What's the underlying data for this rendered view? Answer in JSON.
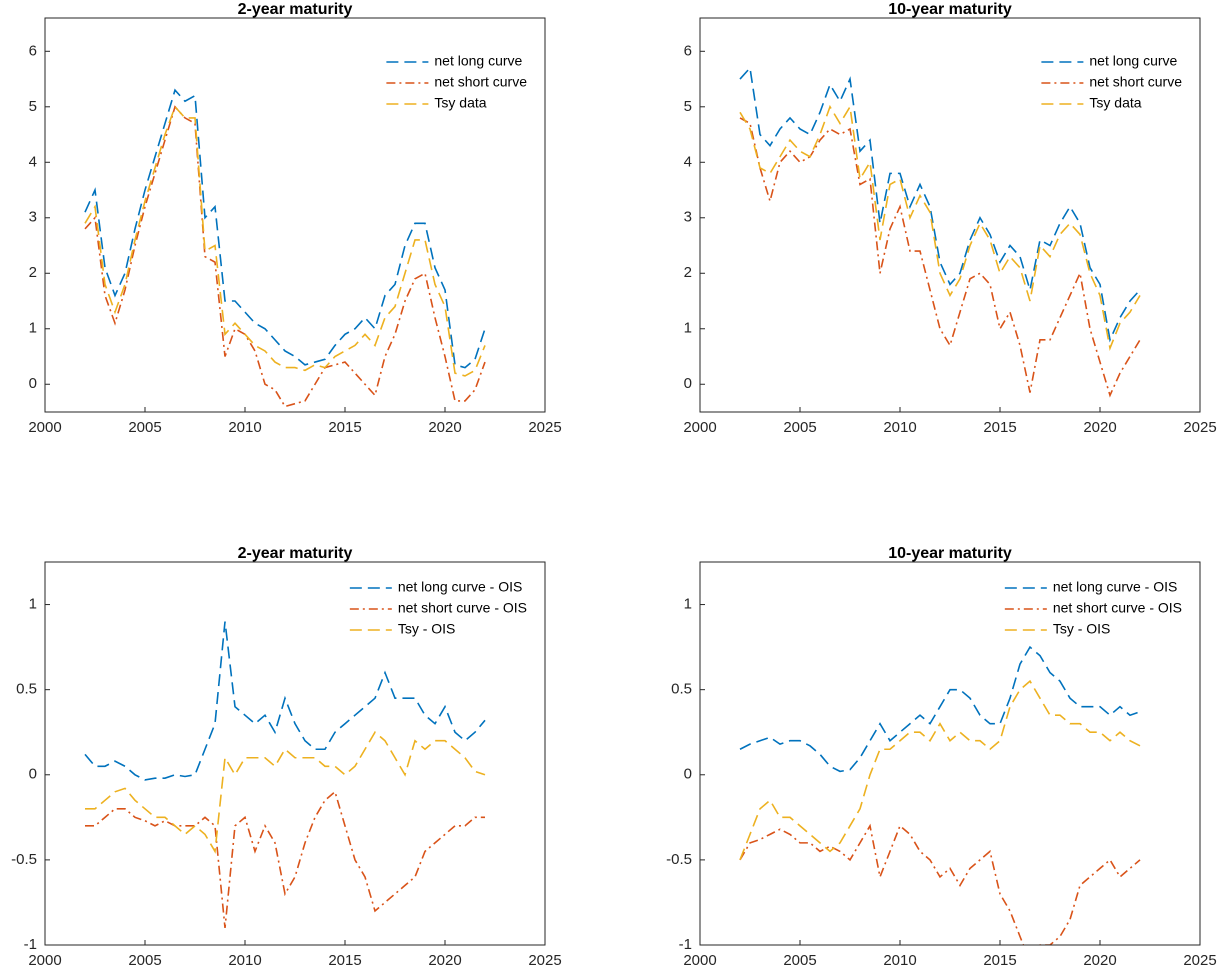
{
  "chart_data": [
    {
      "type": "line",
      "title": "2-year maturity",
      "legend": "upper right",
      "xlim": [
        2000,
        2025
      ],
      "xticks": [
        2000,
        2005,
        2010,
        2015,
        2020,
        2025
      ],
      "ylim": [
        -0.5,
        6.6
      ],
      "yticks": [
        0,
        1,
        2,
        3,
        4,
        5,
        6
      ],
      "x": [
        2002,
        2002.5,
        2003,
        2003.5,
        2004,
        2004.5,
        2005,
        2005.5,
        2006,
        2006.5,
        2007,
        2007.5,
        2008,
        2008.5,
        2009,
        2009.5,
        2010,
        2010.5,
        2011,
        2011.5,
        2012,
        2012.5,
        2013,
        2013.5,
        2014,
        2014.5,
        2015,
        2015.5,
        2016,
        2016.5,
        2017,
        2017.5,
        2018,
        2018.5,
        2019,
        2019.5,
        2020,
        2020.5,
        2021,
        2021.5,
        2022
      ],
      "series": [
        {
          "name": "net long curve",
          "color": "#0072bd",
          "values": [
            3.1,
            3.5,
            2.1,
            1.6,
            2.0,
            2.8,
            3.5,
            4.1,
            4.7,
            5.3,
            5.1,
            5.2,
            3.0,
            3.2,
            1.5,
            1.5,
            1.3,
            1.1,
            1.0,
            0.8,
            0.6,
            0.5,
            0.35,
            0.4,
            0.45,
            0.7,
            0.9,
            1.0,
            1.2,
            1.0,
            1.6,
            1.8,
            2.5,
            2.9,
            2.9,
            2.1,
            1.7,
            0.35,
            0.3,
            0.45,
            1.0
          ]
        },
        {
          "name": "net short curve",
          "color": "#d95319",
          "values": [
            2.8,
            3.0,
            1.6,
            1.1,
            1.7,
            2.5,
            3.2,
            3.8,
            4.4,
            5.0,
            4.8,
            4.7,
            2.3,
            2.2,
            0.5,
            1.0,
            0.9,
            0.6,
            0.0,
            -0.1,
            -0.4,
            -0.35,
            -0.3,
            0.0,
            0.3,
            0.35,
            0.4,
            0.2,
            0.0,
            -0.2,
            0.5,
            0.9,
            1.5,
            1.9,
            2.0,
            1.2,
            0.5,
            -0.3,
            -0.3,
            -0.1,
            0.4
          ]
        },
        {
          "name": "Tsy data",
          "color": "#edb120",
          "values": [
            2.9,
            3.2,
            1.8,
            1.3,
            1.8,
            2.6,
            3.3,
            3.9,
            4.5,
            5.0,
            4.8,
            4.8,
            2.4,
            2.5,
            0.9,
            1.1,
            0.9,
            0.7,
            0.6,
            0.4,
            0.3,
            0.3,
            0.25,
            0.35,
            0.3,
            0.5,
            0.6,
            0.7,
            0.9,
            0.7,
            1.2,
            1.4,
            2.0,
            2.6,
            2.6,
            1.8,
            1.4,
            0.2,
            0.15,
            0.25,
            0.7
          ]
        }
      ]
    },
    {
      "type": "line",
      "title": "10-year maturity",
      "legend": "upper right",
      "xlim": [
        2000,
        2025
      ],
      "xticks": [
        2000,
        2005,
        2010,
        2015,
        2020,
        2025
      ],
      "ylim": [
        -0.5,
        6.6
      ],
      "yticks": [
        0,
        1,
        2,
        3,
        4,
        5,
        6
      ],
      "x": [
        2002,
        2002.5,
        2003,
        2003.5,
        2004,
        2004.5,
        2005,
        2005.5,
        2006,
        2006.5,
        2007,
        2007.5,
        2008,
        2008.5,
        2009,
        2009.5,
        2010,
        2010.5,
        2011,
        2011.5,
        2012,
        2012.5,
        2013,
        2013.5,
        2014,
        2014.5,
        2015,
        2015.5,
        2016,
        2016.5,
        2017,
        2017.5,
        2018,
        2018.5,
        2019,
        2019.5,
        2020,
        2020.5,
        2021,
        2021.5,
        2022
      ],
      "series": [
        {
          "name": "net long curve",
          "color": "#0072bd",
          "values": [
            5.5,
            5.7,
            4.5,
            4.3,
            4.6,
            4.8,
            4.6,
            4.5,
            4.9,
            5.4,
            5.1,
            5.5,
            4.2,
            4.4,
            2.9,
            3.8,
            3.8,
            3.2,
            3.6,
            3.2,
            2.2,
            1.8,
            2.0,
            2.6,
            3.0,
            2.7,
            2.2,
            2.5,
            2.3,
            1.7,
            2.6,
            2.5,
            2.9,
            3.2,
            2.9,
            2.1,
            1.8,
            0.8,
            1.2,
            1.5,
            1.7
          ]
        },
        {
          "name": "net short curve",
          "color": "#d95319",
          "values": [
            4.8,
            4.7,
            3.9,
            3.3,
            4.0,
            4.2,
            4.0,
            4.1,
            4.4,
            4.6,
            4.5,
            4.6,
            3.6,
            3.7,
            2.0,
            2.8,
            3.2,
            2.4,
            2.4,
            1.7,
            1.0,
            0.7,
            1.3,
            1.9,
            2.0,
            1.8,
            1.0,
            1.3,
            0.7,
            -0.15,
            0.8,
            0.8,
            1.2,
            1.6,
            2.0,
            1.0,
            0.4,
            -0.2,
            0.2,
            0.5,
            0.8
          ]
        },
        {
          "name": "Tsy data",
          "color": "#edb120",
          "values": [
            4.9,
            4.6,
            3.9,
            3.8,
            4.1,
            4.4,
            4.2,
            4.1,
            4.5,
            5.0,
            4.7,
            5.0,
            3.7,
            4.0,
            2.6,
            3.6,
            3.7,
            3.0,
            3.4,
            3.1,
            2.0,
            1.6,
            1.9,
            2.5,
            2.9,
            2.6,
            2.0,
            2.3,
            2.1,
            1.5,
            2.5,
            2.3,
            2.7,
            2.9,
            2.7,
            2.0,
            1.6,
            0.65,
            1.1,
            1.3,
            1.6
          ]
        }
      ]
    },
    {
      "type": "line",
      "title": "2-year maturity",
      "legend": "upper right",
      "xlim": [
        2000,
        2025
      ],
      "xticks": [
        2000,
        2005,
        2010,
        2015,
        2020,
        2025
      ],
      "ylim": [
        -1,
        1.25
      ],
      "yticks": [
        -1,
        -0.5,
        0,
        0.5,
        1
      ],
      "x": [
        2002,
        2002.5,
        2003,
        2003.5,
        2004,
        2004.5,
        2005,
        2005.5,
        2006,
        2006.5,
        2007,
        2007.5,
        2008,
        2008.5,
        2009,
        2009.5,
        2010,
        2010.5,
        2011,
        2011.5,
        2012,
        2012.5,
        2013,
        2013.5,
        2014,
        2014.5,
        2015,
        2015.5,
        2016,
        2016.5,
        2017,
        2017.5,
        2018,
        2018.5,
        2019,
        2019.5,
        2020,
        2020.5,
        2021,
        2021.5,
        2022
      ],
      "series": [
        {
          "name": "net long curve - OIS",
          "color": "#0072bd",
          "values": [
            0.12,
            0.05,
            0.05,
            0.08,
            0.05,
            0.0,
            -0.03,
            -0.02,
            -0.02,
            0.0,
            -0.01,
            0.0,
            0.15,
            0.3,
            0.9,
            0.4,
            0.35,
            0.3,
            0.35,
            0.25,
            0.45,
            0.3,
            0.2,
            0.15,
            0.15,
            0.25,
            0.3,
            0.35,
            0.4,
            0.45,
            0.6,
            0.45,
            0.45,
            0.45,
            0.35,
            0.3,
            0.4,
            0.25,
            0.2,
            0.25,
            0.32
          ]
        },
        {
          "name": "net short curve - OIS",
          "color": "#d95319",
          "values": [
            -0.3,
            -0.3,
            -0.25,
            -0.2,
            -0.2,
            -0.25,
            -0.27,
            -0.3,
            -0.27,
            -0.3,
            -0.3,
            -0.3,
            -0.25,
            -0.3,
            -0.9,
            -0.3,
            -0.25,
            -0.45,
            -0.3,
            -0.4,
            -0.7,
            -0.6,
            -0.4,
            -0.25,
            -0.15,
            -0.1,
            -0.3,
            -0.5,
            -0.6,
            -0.8,
            -0.75,
            -0.7,
            -0.65,
            -0.6,
            -0.45,
            -0.4,
            -0.35,
            -0.3,
            -0.3,
            -0.25,
            -0.25
          ]
        },
        {
          "name": "Tsy - OIS",
          "color": "#edb120",
          "values": [
            -0.2,
            -0.2,
            -0.15,
            -0.1,
            -0.08,
            -0.15,
            -0.2,
            -0.25,
            -0.25,
            -0.3,
            -0.35,
            -0.3,
            -0.35,
            -0.45,
            0.1,
            0.0,
            0.1,
            0.1,
            0.1,
            0.05,
            0.15,
            0.1,
            0.1,
            0.1,
            0.05,
            0.05,
            0.0,
            0.05,
            0.15,
            0.25,
            0.2,
            0.1,
            0.0,
            0.2,
            0.15,
            0.2,
            0.2,
            0.15,
            0.1,
            0.02,
            0.0
          ]
        }
      ]
    },
    {
      "type": "line",
      "title": "10-year maturity",
      "legend": "upper right",
      "xlim": [
        2000,
        2025
      ],
      "xticks": [
        2000,
        2005,
        2010,
        2015,
        2020,
        2025
      ],
      "ylim": [
        -1,
        1.25
      ],
      "yticks": [
        -1,
        -0.5,
        0,
        0.5,
        1
      ],
      "x": [
        2002,
        2002.5,
        2003,
        2003.5,
        2004,
        2004.5,
        2005,
        2005.5,
        2006,
        2006.5,
        2007,
        2007.5,
        2008,
        2008.5,
        2009,
        2009.5,
        2010,
        2010.5,
        2011,
        2011.5,
        2012,
        2012.5,
        2013,
        2013.5,
        2014,
        2014.5,
        2015,
        2015.5,
        2016,
        2016.5,
        2017,
        2017.5,
        2018,
        2018.5,
        2019,
        2019.5,
        2020,
        2020.5,
        2021,
        2021.5,
        2022
      ],
      "series": [
        {
          "name": "net long curve - OIS",
          "color": "#0072bd",
          "values": [
            0.15,
            0.18,
            0.2,
            0.22,
            0.18,
            0.2,
            0.2,
            0.17,
            0.12,
            0.05,
            0.02,
            0.03,
            0.1,
            0.2,
            0.3,
            0.2,
            0.25,
            0.3,
            0.35,
            0.3,
            0.4,
            0.5,
            0.5,
            0.45,
            0.35,
            0.3,
            0.3,
            0.45,
            0.65,
            0.75,
            0.7,
            0.6,
            0.55,
            0.45,
            0.4,
            0.4,
            0.4,
            0.35,
            0.4,
            0.35,
            0.37
          ]
        },
        {
          "name": "net short curve - OIS",
          "color": "#d95319",
          "values": [
            -0.5,
            -0.4,
            -0.38,
            -0.35,
            -0.32,
            -0.35,
            -0.4,
            -0.4,
            -0.45,
            -0.42,
            -0.45,
            -0.5,
            -0.4,
            -0.3,
            -0.6,
            -0.45,
            -0.3,
            -0.35,
            -0.45,
            -0.5,
            -0.6,
            -0.55,
            -0.65,
            -0.55,
            -0.5,
            -0.45,
            -0.7,
            -0.8,
            -0.95,
            -1.1,
            -1.0,
            -1.0,
            -0.95,
            -0.85,
            -0.65,
            -0.6,
            -0.55,
            -0.5,
            -0.6,
            -0.55,
            -0.5
          ]
        },
        {
          "name": "Tsy - OIS",
          "color": "#edb120",
          "values": [
            -0.5,
            -0.35,
            -0.2,
            -0.15,
            -0.25,
            -0.25,
            -0.3,
            -0.35,
            -0.4,
            -0.45,
            -0.4,
            -0.3,
            -0.2,
            0.0,
            0.15,
            0.15,
            0.2,
            0.25,
            0.25,
            0.2,
            0.3,
            0.2,
            0.25,
            0.2,
            0.2,
            0.15,
            0.2,
            0.4,
            0.5,
            0.55,
            0.45,
            0.35,
            0.35,
            0.3,
            0.3,
            0.25,
            0.25,
            0.2,
            0.25,
            0.2,
            0.17
          ]
        }
      ]
    }
  ]
}
